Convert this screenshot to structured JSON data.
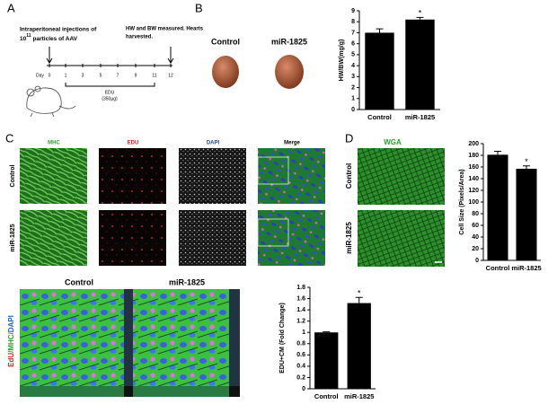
{
  "panel_labels": [
    "A",
    "B",
    "C",
    "D"
  ],
  "panel_a": {
    "injection_line1": "Intraperitoneal injections of",
    "injection_base": "10",
    "injection_exponent": "11",
    "injection_rest": "particles of AAV",
    "harvest_line1": "HW and BW measured. Hearts",
    "harvest_line2": "harvested.",
    "day_label": "Day",
    "days": [
      "0",
      "1",
      "3",
      "5",
      "7",
      "9",
      "11",
      "12"
    ],
    "edu_label": "EDU",
    "edu_dose": "(350µg)"
  },
  "panel_b": {
    "photo_labels": [
      "Control",
      "miR-1825"
    ]
  },
  "panel_c": {
    "columns": [
      "MHC",
      "EDU",
      "DAPI",
      "Merge"
    ],
    "rows": [
      "Control",
      "miR-1825"
    ],
    "confocal_labels": [
      "Control",
      "miR-1825"
    ],
    "stain_label": [
      "EdU",
      "/MHC/",
      "DAPI"
    ]
  },
  "panel_d": {
    "title": "WGA",
    "rows": [
      "Control",
      "miR-1825"
    ]
  },
  "chart_data": [
    {
      "type": "bar",
      "y_label": "HW/BW(mg/g)",
      "categories": [
        "Control",
        "miR-1825"
      ],
      "values": [
        7.0,
        8.2
      ],
      "errors": [
        0.35,
        0.2
      ],
      "annotations": [
        null,
        "*"
      ],
      "color": "#000000",
      "ylim": [
        0,
        9
      ],
      "yticks": [
        0,
        1,
        2,
        3,
        4,
        5,
        6,
        7,
        8,
        9
      ]
    },
    {
      "type": "bar",
      "y_label": "EDU+CM (Fold Change)",
      "categories": [
        "Control",
        "miR-1825"
      ],
      "values": [
        1.0,
        1.52
      ],
      "errors": [
        0.01,
        0.1
      ],
      "annotations": [
        null,
        "*"
      ],
      "color": "#000000",
      "ylim": [
        0,
        1.8
      ],
      "yticks": [
        0,
        0.2,
        0.4,
        0.6,
        0.8,
        1,
        1.2,
        1.4,
        1.6,
        1.8
      ]
    },
    {
      "type": "bar",
      "y_label": "Cell Size (Pixels/Area)",
      "categories": [
        "Control",
        "miR-1825"
      ],
      "values": [
        181,
        157
      ],
      "errors": [
        6,
        5
      ],
      "annotations": [
        null,
        "*"
      ],
      "color": "#000000",
      "ylim": [
        0,
        200
      ],
      "yticks": [
        0,
        20,
        40,
        60,
        80,
        100,
        120,
        140,
        160,
        180,
        200
      ]
    }
  ]
}
